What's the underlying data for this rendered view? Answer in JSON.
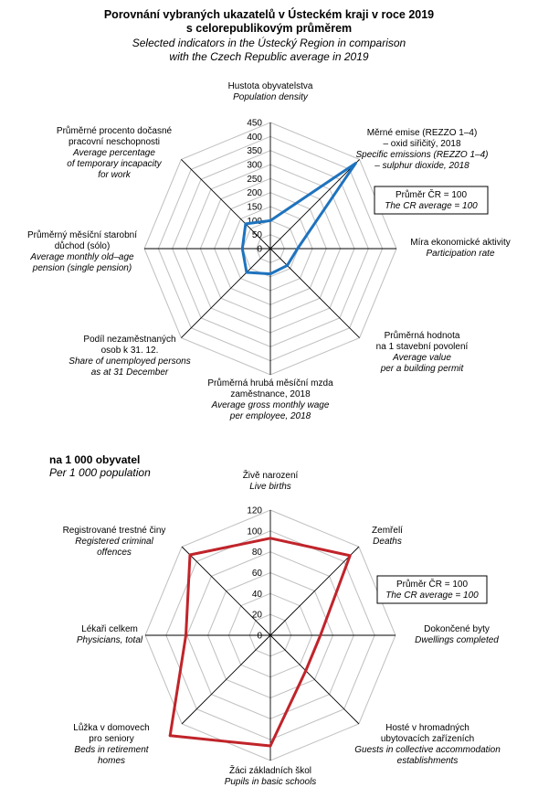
{
  "header": {
    "title_line1": "Porovnání vybraných ukazatelů v Ústeckém kraji v roce 2019",
    "title_line2": "s celorepublikovým průměrem",
    "subtitle_line1": "Selected indicators in the Ústecký Region in comparison",
    "subtitle_line2": "with the Czech Republic average in 2019"
  },
  "section2": {
    "label_cz": "na 1 000 obyvatel",
    "label_en": "Per 1 000 population"
  },
  "colors": {
    "series": "#1E73BE",
    "series2": "#C0242A",
    "grid": "#BFBFBF",
    "axis": "#000000"
  },
  "chart_data": [
    {
      "type": "radar",
      "ylim": [
        0,
        450
      ],
      "ticks": [
        "0",
        "50",
        "100",
        "150",
        "200",
        "250",
        "300",
        "350",
        "400",
        "450"
      ],
      "grid": true,
      "legend_box": {
        "line1": "Průměr ČR = 100",
        "line2": "The CR average = 100"
      },
      "axes": [
        {
          "cz": [
            "Hustota obyvatelstva"
          ],
          "en": [
            "Population density"
          ]
        },
        {
          "cz": [
            "Měrné emise (REZZO 1–4)",
            "– oxid siřičitý, 2018"
          ],
          "en": [
            "Specific emissions (REZZO 1–4)",
            "– sulphur dioxide, 2018"
          ]
        },
        {
          "cz": [
            "Míra ekonomické aktivity"
          ],
          "en": [
            "Participation rate"
          ]
        },
        {
          "cz": [
            "Průměrná hodnota",
            "na 1 stavební povolení"
          ],
          "en": [
            "Average value",
            "per a building permit"
          ]
        },
        {
          "cz": [
            "Průměrná hrubá měsíční mzda",
            "zaměstnance, 2018"
          ],
          "en": [
            "Average gross monthly wage",
            "per employee, 2018"
          ]
        },
        {
          "cz": [
            "Podíl nezaměstnaných",
            "osob k 31. 12."
          ],
          "en": [
            "Share of unemployed persons",
            "as at 31 December"
          ]
        },
        {
          "cz": [
            "Průměrný měsíční starobní",
            "důchod (sólo)"
          ],
          "en": [
            "Average monthly old–age",
            "pension (single pension)"
          ]
        },
        {
          "cz": [
            "Průměrné procento dočasné",
            "pracovní neschopnosti"
          ],
          "en": [
            "Average percentage",
            "of temporary incapacity",
            "for work"
          ]
        }
      ],
      "values": [
        100,
        430,
        97,
        85,
        90,
        120,
        100,
        125
      ]
    },
    {
      "type": "radar",
      "ylim": [
        0,
        120
      ],
      "ticks": [
        "0",
        "20",
        "40",
        "60",
        "80",
        "100",
        "120"
      ],
      "grid": true,
      "legend_box": {
        "line1": "Průměr ČR = 100",
        "line2": "The CR average = 100"
      },
      "axes": [
        {
          "cz": [
            "Živě narození"
          ],
          "en": [
            "Live births"
          ]
        },
        {
          "cz": [
            "Zemřelí"
          ],
          "en": [
            "Deaths"
          ]
        },
        {
          "cz": [
            "Dokončené byty"
          ],
          "en": [
            "Dwellings completed"
          ]
        },
        {
          "cz": [
            "Hosté v hromadných",
            "ubytovacích zařízeních"
          ],
          "en": [
            "Guests in collective accommodation",
            "establishments"
          ]
        },
        {
          "cz": [
            "Žáci základních škol"
          ],
          "en": [
            "Pupils in basic schools"
          ]
        },
        {
          "cz": [
            "Lůžka v domovech",
            "pro seniory"
          ],
          "en": [
            "Beds in retirement",
            "homes"
          ]
        },
        {
          "cz": [
            "Lékaři celkem"
          ],
          "en": [
            "Physicians, total"
          ]
        },
        {
          "cz": [
            "Registrované trestné činy"
          ],
          "en": [
            "Registered criminal",
            "offences"
          ]
        }
      ],
      "values": [
        93,
        108,
        48,
        48,
        106,
        136,
        81,
        109
      ]
    }
  ]
}
